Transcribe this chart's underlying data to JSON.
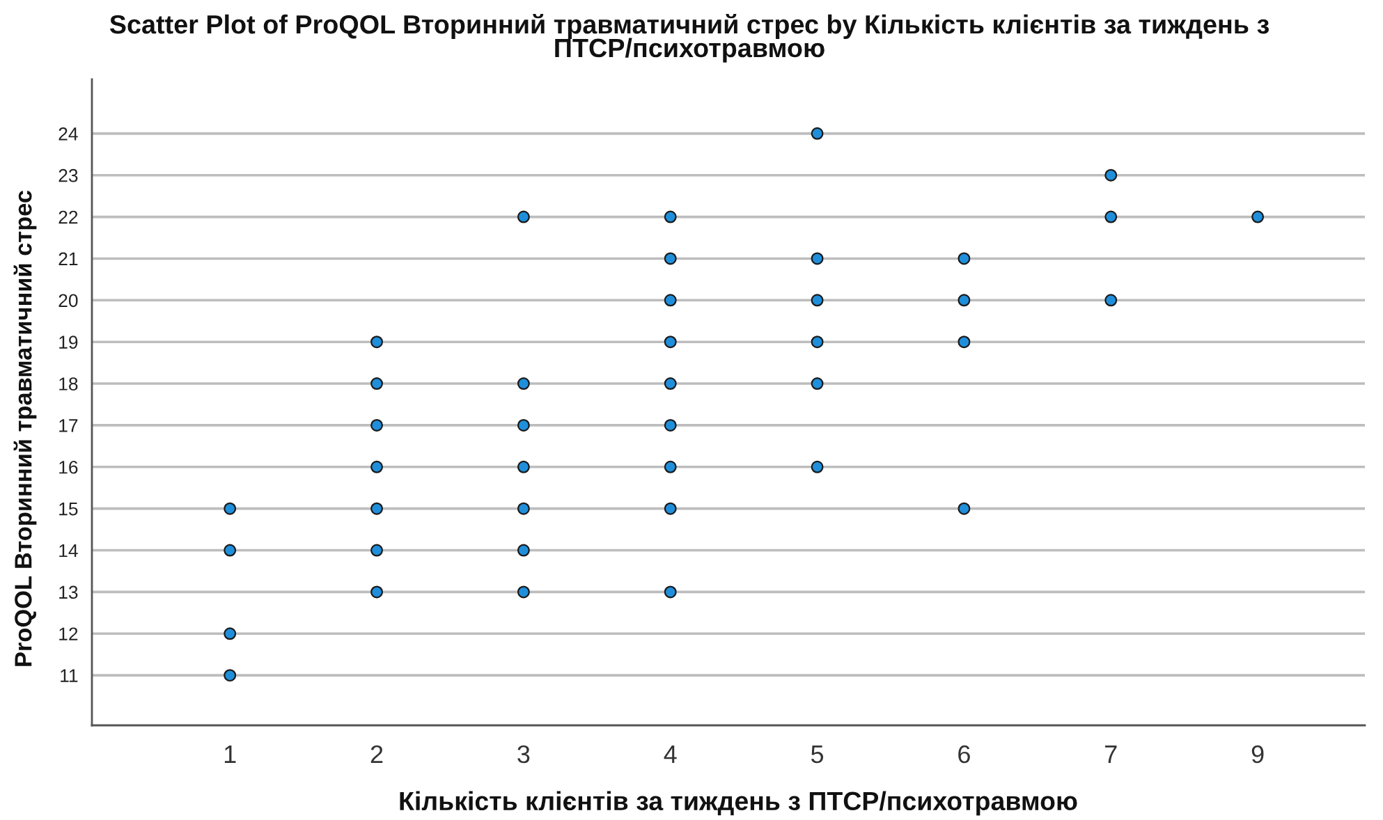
{
  "chart_data": {
    "type": "scatter",
    "title": "Scatter Plot of ProQOL Вторинний травматичний стрес by Кількість клієнтів за тиждень з\nПТСР/психотравмою",
    "xlabel": "Кількість клієнтів за тиждень з ПТСР/психотравмою",
    "ylabel": "ProQOL Вторинний травматичний стрес",
    "categories": [
      "1",
      "2",
      "3",
      "4",
      "5",
      "6",
      "7",
      "9"
    ],
    "series": [
      {
        "color": "#1f8fdb",
        "x": [
          "1",
          "1",
          "1",
          "1",
          "2",
          "2",
          "2",
          "2",
          "2",
          "2",
          "2",
          "3",
          "3",
          "3",
          "3",
          "3",
          "3",
          "3",
          "4",
          "4",
          "4",
          "4",
          "4",
          "4",
          "4",
          "4",
          "4",
          "5",
          "5",
          "5",
          "5",
          "5",
          "5",
          "6",
          "6",
          "6",
          "6",
          "7",
          "7",
          "7",
          "9"
        ],
        "values": [
          15,
          14,
          12,
          11,
          19,
          18,
          17,
          16,
          15,
          14,
          13,
          22,
          18,
          17,
          16,
          15,
          14,
          13,
          22,
          21,
          20,
          19,
          18,
          17,
          16,
          15,
          13,
          24,
          21,
          20,
          19,
          18,
          16,
          21,
          20,
          19,
          15,
          23,
          22,
          20,
          22
        ]
      }
    ],
    "ylim": [
      9.8,
      25.3
    ],
    "yticks": [
      11,
      12,
      13,
      14,
      15,
      16,
      17,
      18,
      19,
      20,
      21,
      22,
      23,
      24
    ],
    "grid": "y",
    "marker": "circle"
  }
}
